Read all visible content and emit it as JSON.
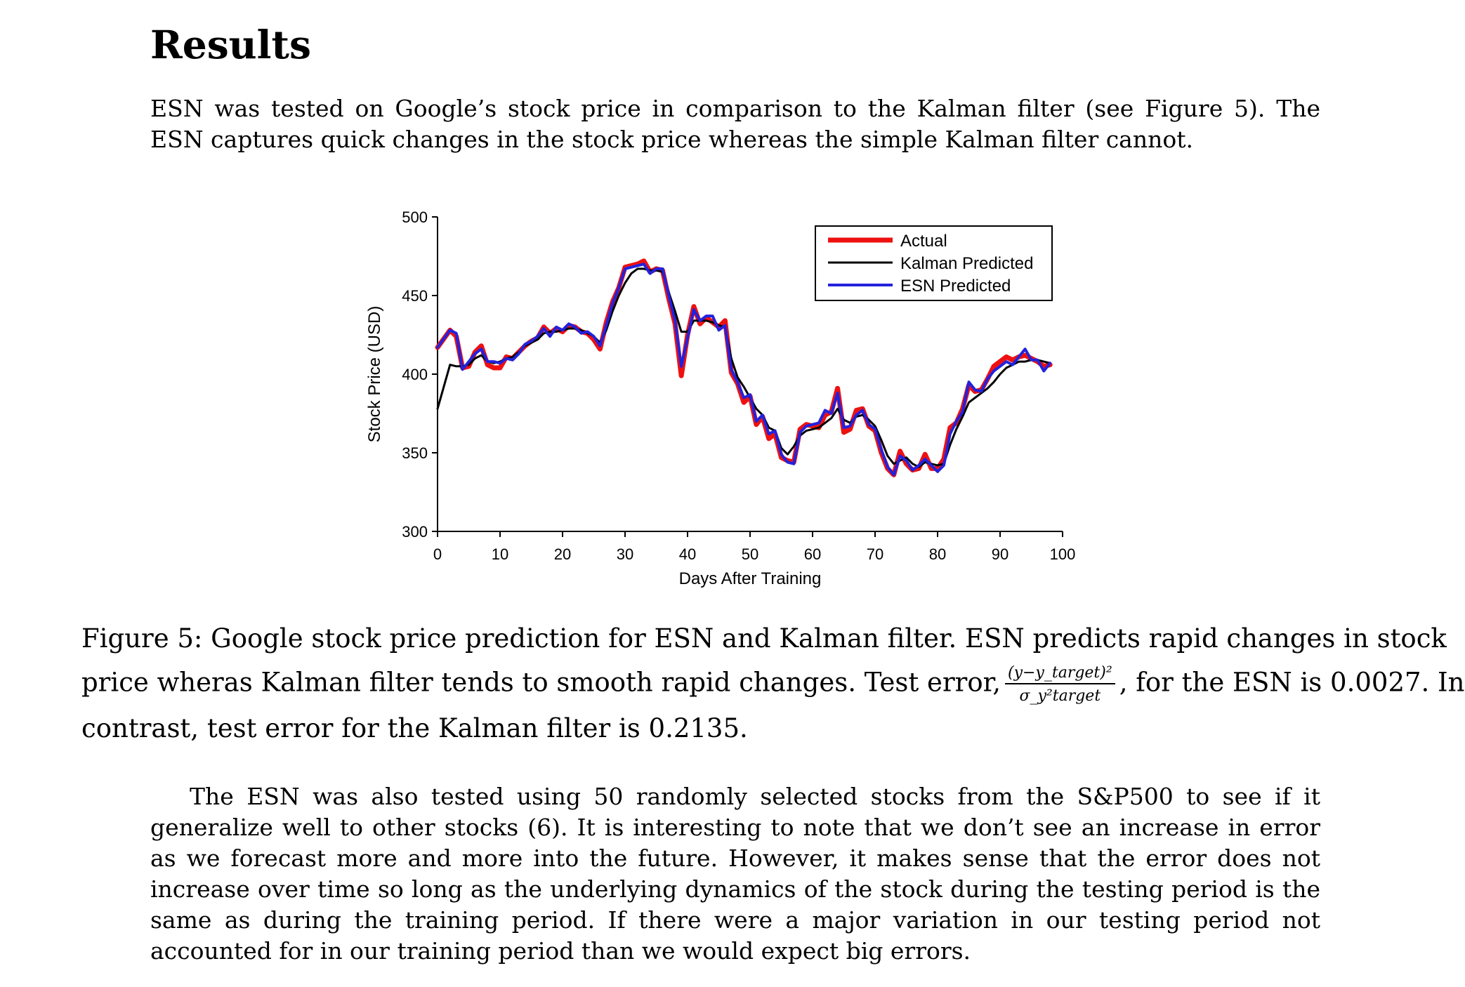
{
  "section": {
    "title": "Results"
  },
  "intro": "ESN was tested on Google’s stock price in comparison to the Kalman filter (see Figure 5). The ESN captures quick changes in the stock price whereas the simple Kalman filter cannot.",
  "caption": {
    "line1": "Figure 5: Google stock price prediction for ESN and Kalman filter. ESN predicts rapid changes in stock",
    "line2_before": "price wheras Kalman filter tends to smooth rapid changes. Test error,",
    "formula_num": "(y−y_target)²",
    "formula_den": "σ_y²target",
    "line2_after": ", for the ESN is 0.0027. In",
    "line3": "contrast, test error for the Kalman filter is 0.2135."
  },
  "body_paragraph": "The ESN was also tested using 50 randomly selected stocks from the S&P500 to see if it generalize well to other stocks (6). It is interesting to note that we don’t see an increase in error as we forecast more and more into the future. However, it makes sense that the error does not increase over time so long as the underlying dynamics of the stock during the testing period is the same as during the training period. If there were a major variation in our testing period not accounted for in our training period than we would expect big errors.",
  "chart_data": {
    "type": "line",
    "xlabel": "Days After Training",
    "ylabel": "Stock Price (USD)",
    "xlim": [
      0,
      100
    ],
    "ylim": [
      300,
      500
    ],
    "xticks": [
      0,
      10,
      20,
      30,
      40,
      50,
      60,
      70,
      80,
      90,
      100
    ],
    "yticks": [
      300,
      350,
      400,
      450,
      500
    ],
    "legend_position": "top-right",
    "x": [
      0,
      2,
      3,
      4,
      5,
      6,
      7,
      8,
      9,
      10,
      11,
      12,
      13,
      14,
      15,
      16,
      17,
      18,
      19,
      20,
      21,
      22,
      23,
      24,
      25,
      26,
      27,
      28,
      29,
      30,
      31,
      32,
      33,
      34,
      35,
      36,
      37,
      38,
      39,
      40,
      41,
      42,
      43,
      44,
      45,
      46,
      47,
      48,
      49,
      50,
      51,
      52,
      53,
      54,
      55,
      56,
      57,
      58,
      59,
      60,
      61,
      62,
      63,
      64,
      65,
      66,
      67,
      68,
      69,
      70,
      71,
      72,
      73,
      74,
      75,
      76,
      77,
      78,
      79,
      80,
      81,
      82,
      83,
      84,
      85,
      86,
      87,
      88,
      89,
      90,
      91,
      92,
      93,
      94,
      95,
      96,
      97,
      98
    ],
    "series": [
      {
        "name": "Actual",
        "color": "#ee1111",
        "values": [
          417,
          428,
          424,
          404,
          405,
          414,
          418,
          406,
          404,
          404,
          411,
          410,
          414,
          418,
          421,
          423,
          430,
          426,
          429,
          427,
          431,
          430,
          427,
          426,
          422,
          416,
          433,
          446,
          455,
          468,
          469,
          470,
          472,
          465,
          467,
          466,
          448,
          432,
          399,
          425,
          443,
          432,
          436,
          433,
          430,
          434,
          401,
          394,
          382,
          386,
          368,
          373,
          359,
          362,
          347,
          345,
          344,
          365,
          368,
          367,
          366,
          374,
          376,
          391,
          363,
          365,
          377,
          378,
          367,
          364,
          350,
          340,
          336,
          351,
          343,
          339,
          340,
          349,
          340,
          340,
          346,
          366,
          369,
          378,
          393,
          389,
          390,
          397,
          405,
          408,
          411,
          409,
          411,
          412,
          410,
          408,
          405,
          406
        ]
      },
      {
        "name": "Kalman Predicted",
        "color": "#000000",
        "values": [
          378,
          406,
          405,
          405,
          406,
          410,
          412,
          408,
          407,
          408,
          410,
          411,
          414,
          418,
          420,
          422,
          426,
          427,
          427,
          428,
          429,
          429,
          428,
          426,
          424,
          420,
          428,
          440,
          450,
          458,
          464,
          467,
          467,
          466,
          466,
          465,
          452,
          440,
          427,
          427,
          434,
          434,
          434,
          433,
          431,
          430,
          410,
          398,
          392,
          385,
          378,
          374,
          366,
          364,
          353,
          349,
          354,
          361,
          364,
          365,
          366,
          369,
          372,
          378,
          371,
          369,
          373,
          374,
          371,
          367,
          358,
          348,
          343,
          345,
          347,
          343,
          341,
          344,
          343,
          342,
          343,
          355,
          365,
          373,
          382,
          385,
          388,
          391,
          395,
          400,
          404,
          406,
          408,
          408,
          409,
          409,
          408,
          407
        ]
      },
      {
        "name": "ESN Predicted",
        "color": "#2222dd",
        "values": [
          417,
          428,
          426,
          403,
          408,
          413,
          416,
          408,
          408,
          407,
          410,
          409,
          413,
          419,
          421,
          424,
          429,
          424,
          430,
          428,
          432,
          430,
          426,
          427,
          424,
          418,
          431,
          445,
          455,
          467,
          468,
          469,
          470,
          464,
          467,
          467,
          450,
          434,
          405,
          423,
          441,
          434,
          437,
          437,
          428,
          431,
          403,
          395,
          385,
          387,
          370,
          374,
          362,
          364,
          349,
          344,
          343,
          363,
          367,
          368,
          369,
          377,
          375,
          388,
          366,
          367,
          374,
          377,
          368,
          365,
          352,
          341,
          336,
          348,
          345,
          339,
          342,
          346,
          342,
          338,
          342,
          362,
          370,
          376,
          395,
          390,
          389,
          397,
          402,
          405,
          408,
          406,
          411,
          416,
          409,
          409,
          402,
          407
        ]
      }
    ]
  }
}
